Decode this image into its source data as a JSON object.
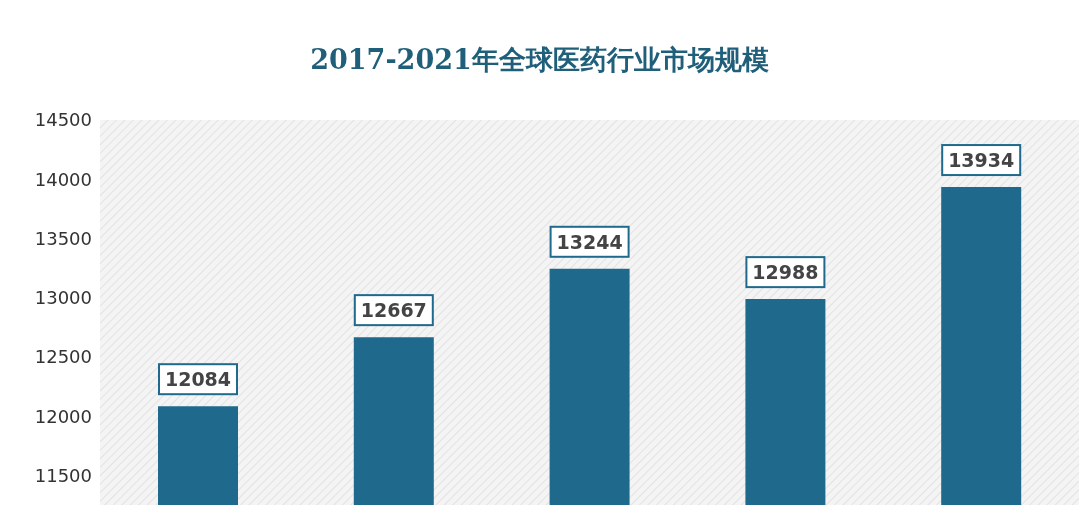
{
  "chart_data": {
    "type": "bar",
    "title": "2017-2021年全球医药行业市场规模",
    "categories": [
      null,
      null,
      null,
      null,
      null
    ],
    "values": [
      12084,
      12667,
      13244,
      12988,
      13934
    ],
    "color": "#1f6a8c",
    "ylim": [
      11250,
      14500
    ],
    "yticks": [
      11500,
      12000,
      12500,
      13000,
      13500,
      14000,
      14500
    ],
    "data_labels": true
  }
}
